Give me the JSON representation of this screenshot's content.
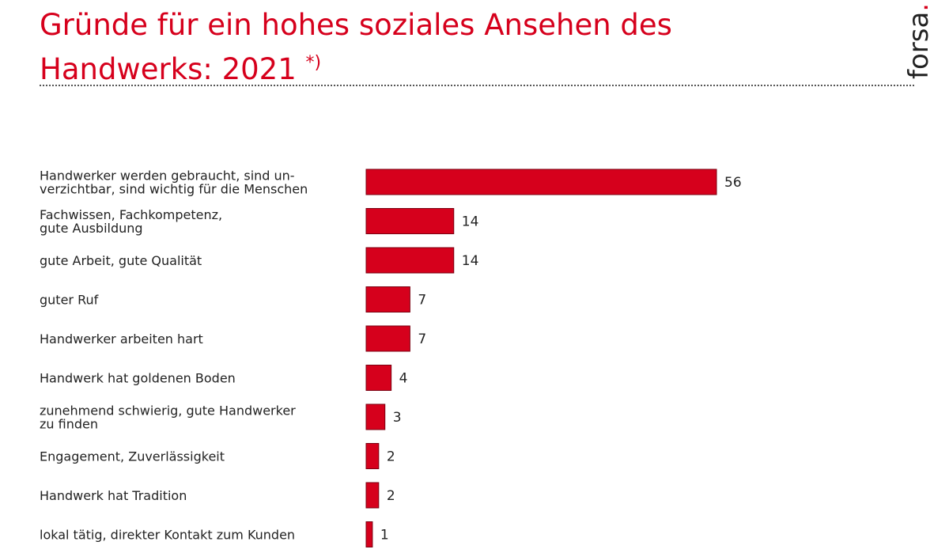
{
  "title_line1": "Gründe für ein hohes soziales Ansehen des",
  "title_line2": "Handwerks: 2021",
  "title_marker": "*)",
  "brand_name": "forsa",
  "brand_dot": ".",
  "colors": {
    "accent": "#d6001c",
    "bar": "#d6001c",
    "bar_stroke": "#7a0010",
    "text": "#222222"
  },
  "chart_data": {
    "type": "bar",
    "orientation": "horizontal",
    "title": "Gründe für ein hohes soziales Ansehen des Handwerks: 2021 *)",
    "xlabel": "",
    "ylabel": "",
    "xlim": [
      0,
      56
    ],
    "grid": false,
    "categories": [
      [
        "Handwerker werden gebraucht, sind un-",
        "verzichtbar, sind wichtig für die Menschen"
      ],
      [
        "Fachwissen, Fachkompetenz,",
        "gute Ausbildung"
      ],
      [
        "gute Arbeit, gute Qualität"
      ],
      [
        "guter Ruf"
      ],
      [
        "Handwerker arbeiten hart"
      ],
      [
        "Handwerk hat goldenen Boden"
      ],
      [
        "zunehmend schwierig, gute Handwerker",
        "zu finden"
      ],
      [
        "Engagement, Zuverlässigkeit"
      ],
      [
        "Handwerk hat Tradition"
      ],
      [
        "lokal tätig, direkter Kontakt zum Kunden"
      ]
    ],
    "values": [
      56,
      14,
      14,
      7,
      7,
      4,
      3,
      2,
      2,
      1
    ]
  }
}
